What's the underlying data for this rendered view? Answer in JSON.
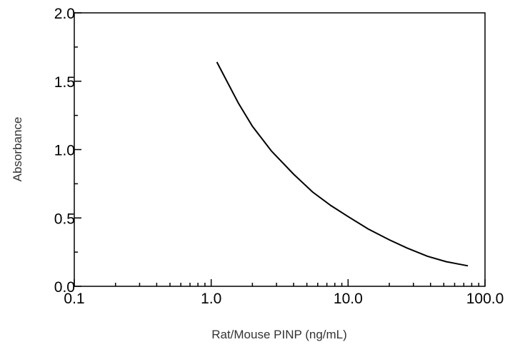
{
  "chart_data": {
    "type": "line",
    "xlabel": "Rat/Mouse PINP (ng/mL)",
    "ylabel": "Absorbance",
    "xscale": "log",
    "xlim": [
      0.1,
      100.0
    ],
    "ylim": [
      0.0,
      2.0
    ],
    "grid": false,
    "x_tick_labels": [
      "0.1",
      "1.0",
      "10.0",
      "100.0"
    ],
    "x_tick_values": [
      0.1,
      1.0,
      10.0,
      100.0
    ],
    "y_tick_labels": [
      "0.0",
      "0.5",
      "1.0",
      "1.5",
      "2.0"
    ],
    "y_tick_values": [
      0.0,
      0.5,
      1.0,
      1.5,
      2.0
    ],
    "series": [
      {
        "color": "#000000",
        "x": [
          1.1,
          1.58,
          2.0,
          2.75,
          4.0,
          5.5,
          7.5,
          10.0,
          14.0,
          20.0,
          27.0,
          38.0,
          52.0,
          75.0
        ],
        "y": [
          1.64,
          1.34,
          1.17,
          0.99,
          0.82,
          0.69,
          0.59,
          0.51,
          0.42,
          0.34,
          0.28,
          0.22,
          0.18,
          0.15
        ]
      }
    ]
  }
}
